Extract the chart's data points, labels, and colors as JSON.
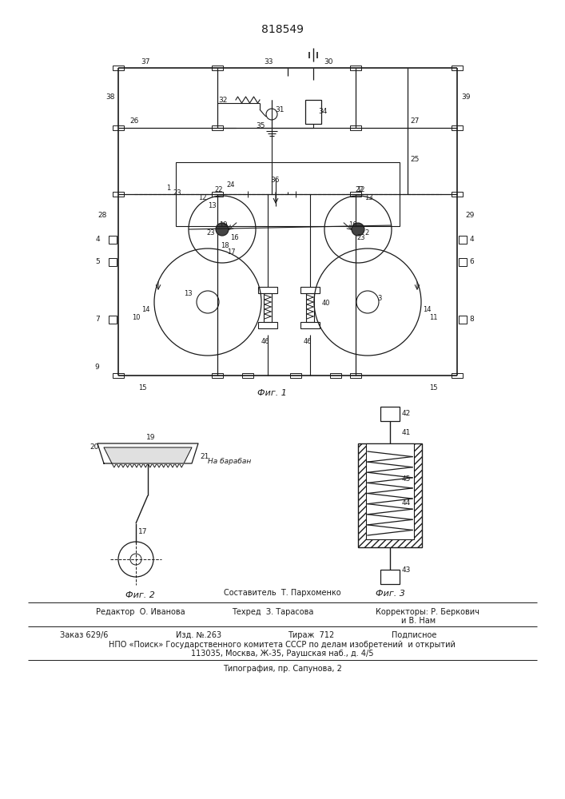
{
  "title": "818549",
  "bg_color": "#ffffff",
  "line_color": "#1a1a1a",
  "fig1_label": "Фиг. 1",
  "fig2_label": "Фиг. 2",
  "fig3_label": "Фиг. 3"
}
